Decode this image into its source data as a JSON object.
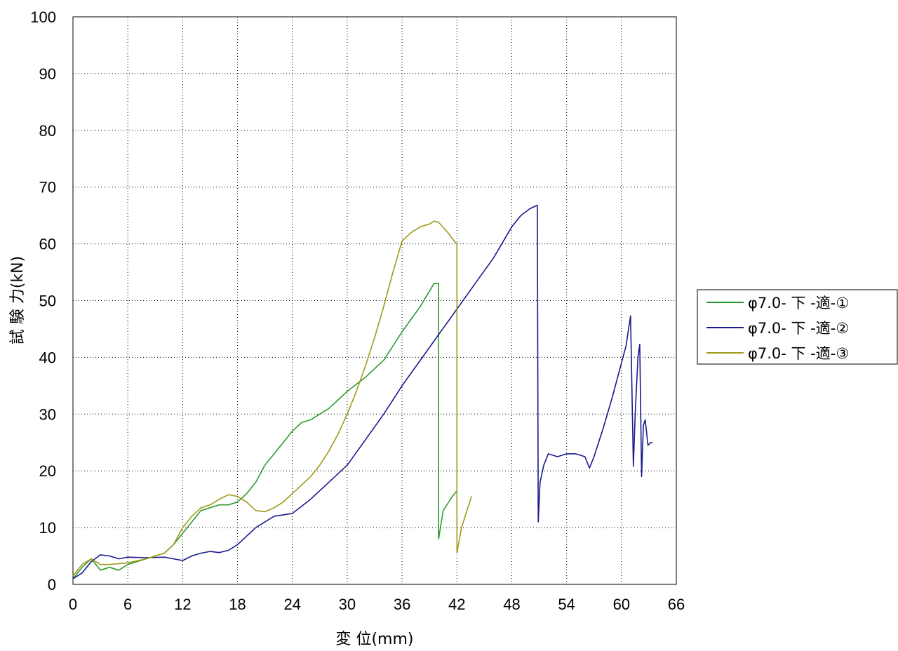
{
  "chart_data": {
    "type": "line",
    "xlabel": "変 位(mm)",
    "ylabel": "試 験 力(kN)",
    "xlim": [
      0,
      66
    ],
    "ylim": [
      0,
      100
    ],
    "x_ticks": [
      "0",
      "6",
      "12",
      "18",
      "24",
      "30",
      "36",
      "42",
      "48",
      "54",
      "60",
      "66"
    ],
    "y_ticks": [
      "0",
      "10",
      "20",
      "30",
      "40",
      "50",
      "60",
      "70",
      "80",
      "90",
      "100"
    ],
    "grid": true,
    "legend_position": "right",
    "series": [
      {
        "name": "φ7.0- 下 -適-①",
        "color": "#2e9a2e",
        "points": [
          [
            0,
            1
          ],
          [
            1,
            3
          ],
          [
            2,
            4.5
          ],
          [
            2.5,
            3.5
          ],
          [
            3,
            2.5
          ],
          [
            4,
            3
          ],
          [
            5,
            2.5
          ],
          [
            6,
            3.5
          ],
          [
            7,
            4
          ],
          [
            8,
            4.5
          ],
          [
            9,
            5
          ],
          [
            10,
            5.5
          ],
          [
            11,
            7
          ],
          [
            12,
            9
          ],
          [
            13,
            11
          ],
          [
            14,
            13
          ],
          [
            15,
            13.5
          ],
          [
            16,
            14
          ],
          [
            17,
            14
          ],
          [
            18,
            14.5
          ],
          [
            19,
            16
          ],
          [
            20,
            18
          ],
          [
            21,
            21
          ],
          [
            22,
            23
          ],
          [
            23,
            25
          ],
          [
            24,
            27
          ],
          [
            25,
            28.5
          ],
          [
            26,
            29
          ],
          [
            27,
            30
          ],
          [
            28,
            31
          ],
          [
            29,
            32.5
          ],
          [
            30,
            34
          ],
          [
            32,
            36.5
          ],
          [
            34,
            39.5
          ],
          [
            36,
            44.5
          ],
          [
            38,
            49
          ],
          [
            39.5,
            53
          ],
          [
            40,
            53
          ],
          [
            40,
            8
          ],
          [
            40.5,
            13
          ],
          [
            41.5,
            15.5
          ],
          [
            42,
            16.5
          ]
        ]
      },
      {
        "name": "φ7.0- 下 -適-②",
        "color": "#1a1a8c",
        "points": [
          [
            0,
            1
          ],
          [
            1,
            2
          ],
          [
            2,
            4
          ],
          [
            3,
            5.2
          ],
          [
            4,
            5
          ],
          [
            5,
            4.5
          ],
          [
            6,
            4.8
          ],
          [
            8,
            4.7
          ],
          [
            10,
            4.8
          ],
          [
            11,
            4.5
          ],
          [
            12,
            4.2
          ],
          [
            13,
            5
          ],
          [
            14,
            5.5
          ],
          [
            15,
            5.8
          ],
          [
            16,
            5.6
          ],
          [
            17,
            6
          ],
          [
            18,
            7
          ],
          [
            19,
            8.5
          ],
          [
            20,
            10
          ],
          [
            22,
            12
          ],
          [
            24,
            12.5
          ],
          [
            26,
            15
          ],
          [
            28,
            18
          ],
          [
            30,
            21
          ],
          [
            32,
            25.5
          ],
          [
            34,
            30
          ],
          [
            36,
            35
          ],
          [
            38,
            39.5
          ],
          [
            40,
            44
          ],
          [
            42,
            48.5
          ],
          [
            44,
            53
          ],
          [
            46,
            57.5
          ],
          [
            48,
            63
          ],
          [
            49,
            65
          ],
          [
            50,
            66.2
          ],
          [
            50.8,
            66.8
          ],
          [
            50.9,
            11
          ],
          [
            51.1,
            18
          ],
          [
            51.5,
            21
          ],
          [
            52,
            23
          ],
          [
            53,
            22.5
          ],
          [
            54,
            23
          ],
          [
            55,
            23
          ],
          [
            56,
            22.5
          ],
          [
            56.5,
            20.5
          ],
          [
            57,
            22.5
          ],
          [
            58,
            27.5
          ],
          [
            59,
            33
          ],
          [
            60,
            39
          ],
          [
            60.5,
            42
          ],
          [
            61,
            47.3
          ],
          [
            61.3,
            20.8
          ],
          [
            61.5,
            30
          ],
          [
            61.8,
            40
          ],
          [
            62,
            42.3
          ],
          [
            62.2,
            19
          ],
          [
            62.4,
            28
          ],
          [
            62.6,
            29
          ],
          [
            62.9,
            24.5
          ],
          [
            63.2,
            25
          ],
          [
            63.4,
            25
          ]
        ]
      },
      {
        "name": "φ7.0- 下 -適-③",
        "color": "#a09a1a",
        "points": [
          [
            0,
            1.5
          ],
          [
            1,
            3.5
          ],
          [
            2,
            4.5
          ],
          [
            3,
            3.5
          ],
          [
            4,
            3.5
          ],
          [
            6,
            3.8
          ],
          [
            8,
            4.5
          ],
          [
            10,
            5.5
          ],
          [
            11,
            7
          ],
          [
            12,
            10
          ],
          [
            13,
            12
          ],
          [
            14,
            13.5
          ],
          [
            15,
            14
          ],
          [
            16,
            15
          ],
          [
            17,
            15.8
          ],
          [
            18,
            15.5
          ],
          [
            19,
            14.5
          ],
          [
            20,
            13
          ],
          [
            21,
            12.8
          ],
          [
            22,
            13.5
          ],
          [
            23,
            14.5
          ],
          [
            24,
            16
          ],
          [
            25,
            17.5
          ],
          [
            26,
            19
          ],
          [
            27,
            21
          ],
          [
            28,
            23.5
          ],
          [
            29,
            26.5
          ],
          [
            30,
            30
          ],
          [
            31,
            34
          ],
          [
            32,
            38.5
          ],
          [
            33,
            43.5
          ],
          [
            34,
            49
          ],
          [
            35,
            55
          ],
          [
            36,
            60.5
          ],
          [
            37,
            62
          ],
          [
            38,
            63
          ],
          [
            39,
            63.5
          ],
          [
            39.5,
            64
          ],
          [
            40,
            63.8
          ],
          [
            41,
            62
          ],
          [
            41.7,
            60.5
          ],
          [
            42,
            60
          ],
          [
            42,
            5.5
          ],
          [
            42.5,
            10
          ],
          [
            43,
            12.5
          ],
          [
            43.6,
            15.5
          ]
        ]
      }
    ]
  }
}
